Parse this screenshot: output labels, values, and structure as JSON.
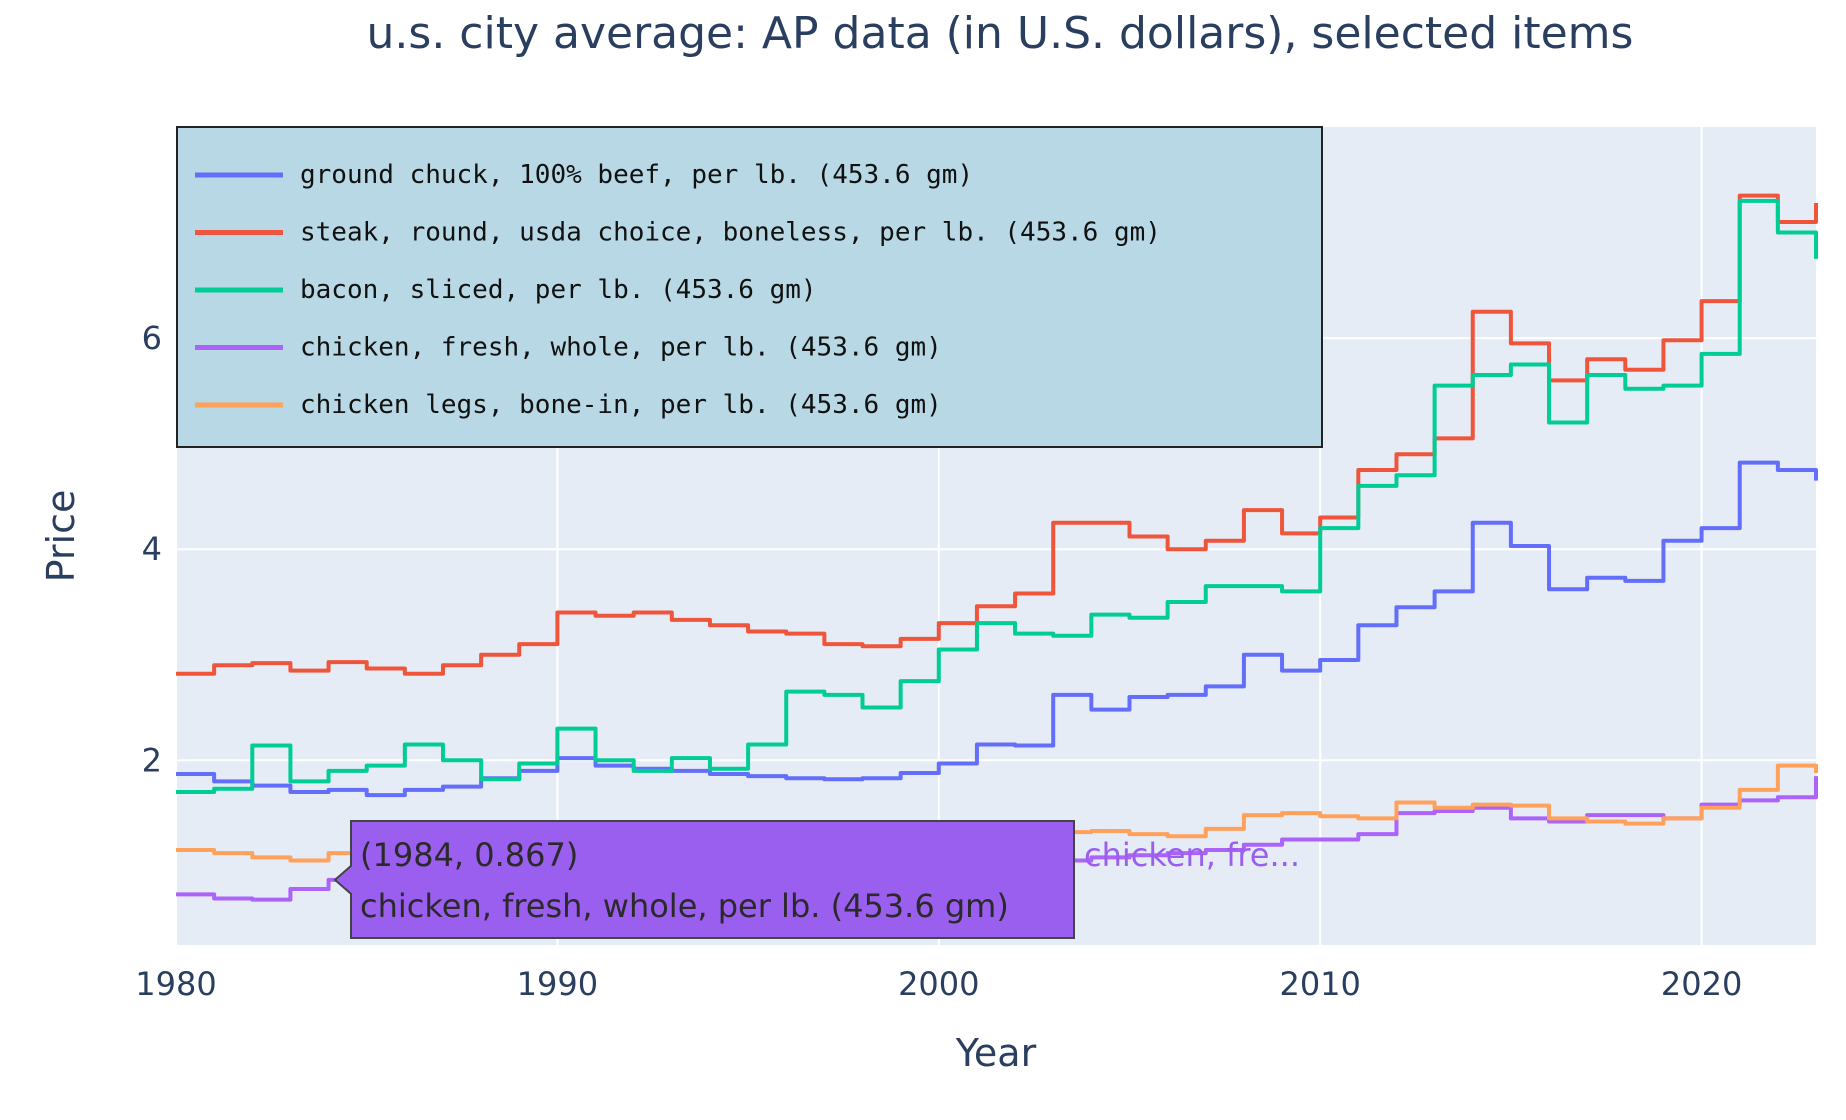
{
  "chart_data": {
    "type": "line",
    "title": "u.s. city average: AP data (in U.S. dollars), selected items",
    "xlabel": "Year",
    "ylabel": "Price",
    "xlim": [
      1980,
      2023
    ],
    "ylim": [
      0.25,
      8.0
    ],
    "xticks": [
      1980,
      1990,
      2000,
      2010,
      2020
    ],
    "yticks": [
      2,
      4,
      6
    ],
    "grid": true,
    "legend_position": "top-left",
    "series": [
      {
        "name": "ground chuck, 100% beef, per lb. (453.6 gm)",
        "color": "#636efa",
        "x": [
          1980,
          1981,
          1982,
          1983,
          1984,
          1985,
          1986,
          1987,
          1988,
          1989,
          1990,
          1991,
          1992,
          1993,
          1994,
          1995,
          1996,
          1997,
          1998,
          1999,
          2000,
          2001,
          2002,
          2003,
          2004,
          2005,
          2006,
          2007,
          2008,
          2009,
          2010,
          2011,
          2012,
          2013,
          2014,
          2015,
          2016,
          2017,
          2018,
          2019,
          2020,
          2021,
          2022,
          2023
        ],
        "y": [
          1.87,
          1.8,
          1.76,
          1.7,
          1.72,
          1.67,
          1.72,
          1.75,
          1.83,
          1.9,
          2.02,
          1.95,
          1.92,
          1.9,
          1.87,
          1.85,
          1.83,
          1.82,
          1.83,
          1.88,
          1.97,
          2.15,
          2.14,
          2.62,
          2.48,
          2.6,
          2.62,
          2.7,
          3.0,
          2.85,
          2.95,
          3.28,
          3.45,
          3.6,
          4.25,
          4.03,
          3.62,
          3.73,
          3.7,
          4.08,
          4.2,
          4.82,
          4.75,
          4.65
        ]
      },
      {
        "name": "steak, round, usda choice, boneless, per lb. (453.6 gm)",
        "color": "#ef553b",
        "x": [
          1980,
          1981,
          1982,
          1983,
          1984,
          1985,
          1986,
          1987,
          1988,
          1989,
          1990,
          1991,
          1992,
          1993,
          1994,
          1995,
          1996,
          1997,
          1998,
          1999,
          2000,
          2001,
          2002,
          2003,
          2004,
          2005,
          2006,
          2007,
          2008,
          2009,
          2010,
          2011,
          2012,
          2013,
          2014,
          2015,
          2016,
          2017,
          2018,
          2019,
          2020,
          2021,
          2022,
          2023
        ],
        "y": [
          2.82,
          2.9,
          2.92,
          2.85,
          2.93,
          2.87,
          2.82,
          2.9,
          3.0,
          3.1,
          3.4,
          3.37,
          3.4,
          3.33,
          3.28,
          3.22,
          3.2,
          3.1,
          3.08,
          3.15,
          3.3,
          3.46,
          3.58,
          4.25,
          4.25,
          4.12,
          4.0,
          4.08,
          4.37,
          4.15,
          4.3,
          4.75,
          4.9,
          5.05,
          6.25,
          5.95,
          5.6,
          5.8,
          5.7,
          5.98,
          6.35,
          7.35,
          7.1,
          7.28
        ]
      },
      {
        "name": "bacon, sliced, per lb. (453.6 gm)",
        "color": "#00cc96",
        "x": [
          1980,
          1981,
          1982,
          1983,
          1984,
          1985,
          1986,
          1987,
          1988,
          1989,
          1990,
          1991,
          1992,
          1993,
          1994,
          1995,
          1996,
          1997,
          1998,
          1999,
          2000,
          2001,
          2002,
          2003,
          2004,
          2005,
          2006,
          2007,
          2008,
          2009,
          2010,
          2011,
          2012,
          2013,
          2014,
          2015,
          2016,
          2017,
          2018,
          2019,
          2020,
          2021,
          2022,
          2023
        ],
        "y": [
          1.7,
          1.73,
          2.14,
          1.8,
          1.9,
          1.95,
          2.15,
          2.0,
          1.82,
          1.97,
          2.3,
          2.0,
          1.9,
          2.02,
          1.92,
          2.15,
          2.65,
          2.62,
          2.5,
          2.75,
          3.05,
          3.3,
          3.2,
          3.18,
          3.38,
          3.35,
          3.5,
          3.65,
          3.65,
          3.6,
          4.2,
          4.6,
          4.7,
          5.55,
          5.65,
          5.75,
          5.2,
          5.65,
          5.52,
          5.55,
          5.85,
          7.3,
          7.0,
          6.75
        ]
      },
      {
        "name": "chicken, fresh, whole, per lb. (453.6 gm)",
        "color": "#ab63fa",
        "x": [
          1980,
          1981,
          1982,
          1983,
          1984,
          1985,
          1986,
          1987,
          1988,
          1989,
          1990,
          1991,
          1992,
          1993,
          1994,
          1995,
          1996,
          1997,
          1998,
          1999,
          2000,
          2001,
          2002,
          2003,
          2004,
          2005,
          2006,
          2007,
          2008,
          2009,
          2010,
          2011,
          2012,
          2013,
          2014,
          2015,
          2016,
          2017,
          2018,
          2019,
          2020,
          2021,
          2022,
          2023
        ],
        "y": [
          0.73,
          0.69,
          0.68,
          0.78,
          0.867,
          0.85,
          0.88,
          0.8,
          0.85,
          0.9,
          0.9,
          0.88,
          0.87,
          0.9,
          0.9,
          0.92,
          0.95,
          1.0,
          1.02,
          1.02,
          1.04,
          1.08,
          1.07,
          1.05,
          1.08,
          1.1,
          1.12,
          1.15,
          1.2,
          1.25,
          1.25,
          1.3,
          1.5,
          1.52,
          1.55,
          1.45,
          1.42,
          1.48,
          1.48,
          1.45,
          1.58,
          1.62,
          1.65,
          1.85
        ]
      },
      {
        "name": "chicken legs, bone-in, per lb. (453.6 gm)",
        "color": "#ffa15a",
        "x": [
          1980,
          1981,
          1982,
          1983,
          1984,
          1985,
          1986,
          1987,
          1988,
          1989,
          1990,
          1991,
          1992,
          1993,
          1994,
          1995,
          1996,
          1997,
          1998,
          1999,
          2000,
          2001,
          2002,
          2003,
          2004,
          2005,
          2006,
          2007,
          2008,
          2009,
          2010,
          2011,
          2012,
          2013,
          2014,
          2015,
          2016,
          2017,
          2018,
          2019,
          2020,
          2021,
          2022,
          2023
        ],
        "y": [
          1.15,
          1.12,
          1.08,
          1.05,
          1.12,
          1.15,
          1.2,
          1.18,
          1.15,
          1.18,
          1.2,
          1.18,
          1.15,
          1.17,
          1.2,
          1.22,
          1.25,
          1.23,
          1.2,
          1.22,
          1.25,
          1.28,
          1.3,
          1.32,
          1.33,
          1.3,
          1.28,
          1.35,
          1.48,
          1.5,
          1.47,
          1.45,
          1.6,
          1.55,
          1.58,
          1.57,
          1.45,
          1.42,
          1.4,
          1.45,
          1.55,
          1.72,
          1.95,
          1.88
        ]
      }
    ],
    "hover": {
      "text_line1": "(1984, 0.867)",
      "text_line2": "chicken, fresh, whole, per lb. (453.6 gm)",
      "label": "chicken, fre...",
      "x": 1984,
      "y": 0.867,
      "color": "#9b5ff0"
    }
  }
}
